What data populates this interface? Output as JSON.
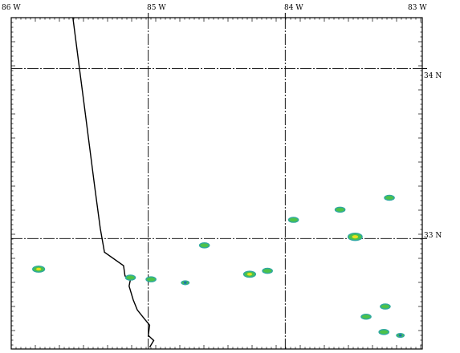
{
  "map": {
    "lon_labels": [
      "86 W",
      "85 W",
      "84 W",
      "83 W"
    ],
    "lat_labels": [
      "34 N",
      "33 N"
    ],
    "lon_range": [
      -86,
      -83
    ],
    "lat_range": [
      32.35,
      34.3
    ],
    "graticule_lons": [
      -85,
      -84
    ],
    "graticule_lats": [
      34,
      33
    ],
    "colors": {
      "border": "#000000",
      "contour_outer": "#2fa8a0",
      "contour_mid": "#4cc24a",
      "contour_core": "#e8e020",
      "contour_dark": "#1a6fb0"
    },
    "state_border": [
      [
        -85.55,
        34.3
      ],
      [
        -85.51,
        34.05
      ],
      [
        -85.47,
        33.8
      ],
      [
        -85.43,
        33.55
      ],
      [
        -85.39,
        33.3
      ],
      [
        -85.35,
        33.06
      ],
      [
        -85.32,
        32.92
      ],
      [
        -85.18,
        32.84
      ],
      [
        -85.17,
        32.78
      ],
      [
        -85.13,
        32.76
      ],
      [
        -85.14,
        32.72
      ],
      [
        -85.11,
        32.64
      ],
      [
        -85.08,
        32.58
      ],
      [
        -85.03,
        32.53
      ],
      [
        -84.99,
        32.49
      ],
      [
        -85.0,
        32.43
      ],
      [
        -84.96,
        32.4
      ],
      [
        -84.99,
        32.36
      ]
    ],
    "cells": [
      {
        "lon": -85.8,
        "lat": 32.82,
        "level": 2
      },
      {
        "lon": -85.13,
        "lat": 32.77,
        "level": 1
      },
      {
        "lon": -84.98,
        "lat": 32.76,
        "level": 1
      },
      {
        "lon": -84.73,
        "lat": 32.74,
        "level": 0
      },
      {
        "lon": -84.59,
        "lat": 32.96,
        "level": 1
      },
      {
        "lon": -84.26,
        "lat": 32.79,
        "level": 2
      },
      {
        "lon": -84.13,
        "lat": 32.81,
        "level": 1
      },
      {
        "lon": -83.94,
        "lat": 33.11,
        "level": 1
      },
      {
        "lon": -83.6,
        "lat": 33.17,
        "level": 1
      },
      {
        "lon": -83.49,
        "lat": 33.01,
        "level": 3
      },
      {
        "lon": -83.24,
        "lat": 33.24,
        "level": 1
      },
      {
        "lon": -83.27,
        "lat": 32.6,
        "level": 1
      },
      {
        "lon": -83.41,
        "lat": 32.54,
        "level": 1
      },
      {
        "lon": -83.28,
        "lat": 32.45,
        "level": 1
      },
      {
        "lon": -83.16,
        "lat": 32.43,
        "level": 0
      }
    ]
  }
}
